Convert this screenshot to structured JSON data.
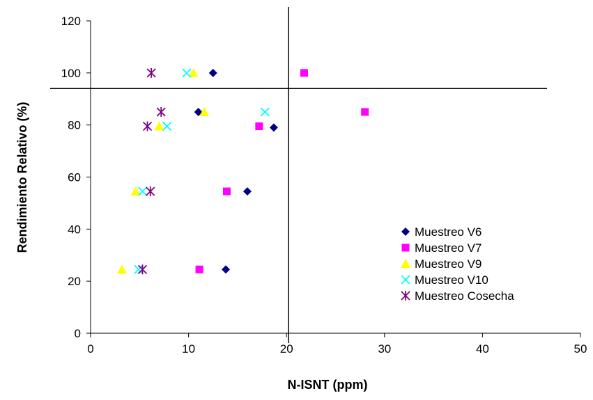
{
  "chart_data": {
    "type": "scatter",
    "xlabel": "N-ISNT (ppm)",
    "ylabel": "Rendimiento Relativo (%)",
    "xlim": [
      0,
      50
    ],
    "ylim": [
      0,
      120
    ],
    "x_ticks": [
      0,
      10,
      20,
      30,
      40,
      50
    ],
    "y_ticks": [
      0,
      20,
      40,
      60,
      80,
      100,
      120
    ],
    "grid": false,
    "legend_position": "right",
    "reference_lines": {
      "vertical_x": 20.2,
      "horizontal_y": 94
    },
    "series": [
      {
        "name": "Muestreo V6",
        "marker": "diamond",
        "color": "#000080",
        "points": [
          [
            12.5,
            100
          ],
          [
            11,
            85
          ],
          [
            18.7,
            79
          ],
          [
            16,
            54.5
          ],
          [
            13.8,
            24.5
          ]
        ]
      },
      {
        "name": "Muestreo V7",
        "marker": "square",
        "color": "#FF00FF",
        "points": [
          [
            21.8,
            100
          ],
          [
            28,
            85
          ],
          [
            17.2,
            79.5
          ],
          [
            13.9,
            54.5
          ],
          [
            11.1,
            24.5
          ]
        ]
      },
      {
        "name": "Muestreo V9",
        "marker": "triangle",
        "color": "#FFFF00",
        "points": [
          [
            10.5,
            100
          ],
          [
            11.6,
            85
          ],
          [
            7,
            79.5
          ],
          [
            4.6,
            54.5
          ],
          [
            3.2,
            24.5
          ]
        ]
      },
      {
        "name": "Muestreo V10",
        "marker": "x",
        "color": "#00FFFF",
        "points": [
          [
            9.8,
            100
          ],
          [
            17.8,
            85
          ],
          [
            7.8,
            79.5
          ],
          [
            5.3,
            54.5
          ],
          [
            4.9,
            24.5
          ]
        ]
      },
      {
        "name": "Muestreo Cosecha",
        "marker": "asterisk",
        "color": "#800080",
        "points": [
          [
            6.2,
            100
          ],
          [
            7.2,
            85
          ],
          [
            5.8,
            79.5
          ],
          [
            6.1,
            54.5
          ],
          [
            5.3,
            24.5
          ]
        ]
      }
    ]
  }
}
